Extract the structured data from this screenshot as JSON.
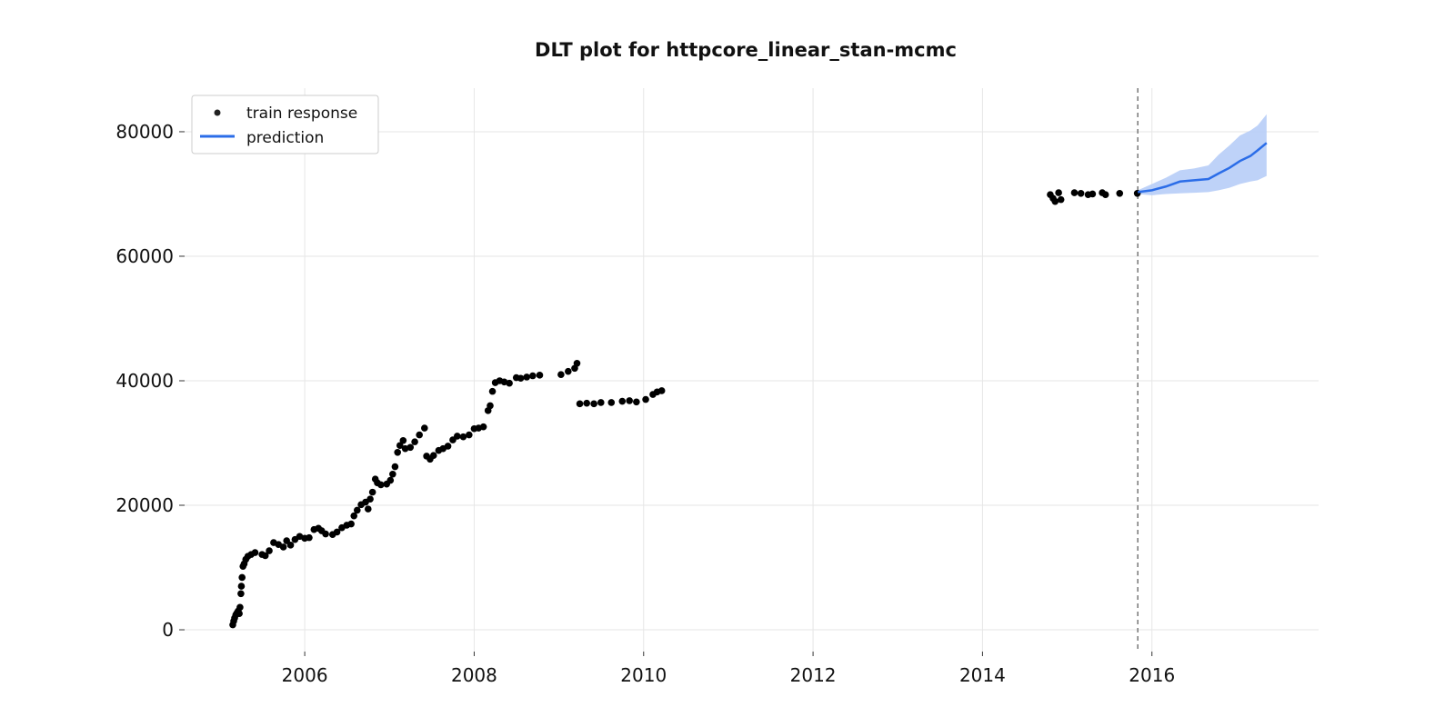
{
  "chart_data": {
    "type": "scatter",
    "title": "DLT plot for httpcore_linear_stan-mcmc",
    "xlabel": "",
    "ylabel": "",
    "x_ticks": [
      "2006",
      "2008",
      "2010",
      "2012",
      "2014",
      "2016"
    ],
    "y_ticks": [
      "0",
      "20000",
      "40000",
      "60000",
      "80000"
    ],
    "xlim": [
      "2004-08-01",
      "2017-12-20"
    ],
    "ylim": [
      -3500,
      87000
    ],
    "grid": true,
    "legend_position": "top-left",
    "legend": [
      "train response",
      "prediction"
    ],
    "colors": {
      "train": "#000000",
      "prediction": "#2b6de8",
      "band": "#b7cdf7",
      "cutoff": "#777777"
    },
    "cutoff_date": "2015-11-01",
    "series": [
      {
        "name": "train response",
        "type": "scatter",
        "points": [
          [
            "2005-02-25",
            800
          ],
          [
            "2005-03-01",
            1400
          ],
          [
            "2005-03-05",
            1900
          ],
          [
            "2005-03-10",
            2400
          ],
          [
            "2005-03-15",
            2700
          ],
          [
            "2005-03-20",
            3000
          ],
          [
            "2005-03-25",
            2600
          ],
          [
            "2005-03-28",
            3600
          ],
          [
            "2005-04-01",
            5800
          ],
          [
            "2005-04-03",
            7000
          ],
          [
            "2005-04-06",
            8400
          ],
          [
            "2005-04-10",
            10200
          ],
          [
            "2005-04-15",
            10600
          ],
          [
            "2005-04-22",
            11300
          ],
          [
            "2005-05-01",
            11800
          ],
          [
            "2005-05-15",
            12100
          ],
          [
            "2005-06-01",
            12400
          ],
          [
            "2005-07-01",
            12100
          ],
          [
            "2005-07-15",
            11900
          ],
          [
            "2005-08-01",
            12700
          ],
          [
            "2005-08-20",
            14000
          ],
          [
            "2005-09-10",
            13700
          ],
          [
            "2005-10-01",
            13300
          ],
          [
            "2005-10-15",
            14300
          ],
          [
            "2005-11-01",
            13600
          ],
          [
            "2005-11-20",
            14500
          ],
          [
            "2005-12-10",
            15000
          ],
          [
            "2006-01-01",
            14700
          ],
          [
            "2006-01-20",
            14800
          ],
          [
            "2006-02-10",
            16100
          ],
          [
            "2006-03-01",
            16300
          ],
          [
            "2006-03-15",
            15900
          ],
          [
            "2006-04-01",
            15400
          ],
          [
            "2006-05-01",
            15300
          ],
          [
            "2006-05-20",
            15700
          ],
          [
            "2006-06-10",
            16400
          ],
          [
            "2006-07-01",
            16800
          ],
          [
            "2006-07-20",
            17000
          ],
          [
            "2006-08-01",
            18300
          ],
          [
            "2006-08-15",
            19200
          ],
          [
            "2006-09-01",
            20100
          ],
          [
            "2006-09-20",
            20500
          ],
          [
            "2006-10-01",
            19400
          ],
          [
            "2006-10-10",
            21000
          ],
          [
            "2006-10-20",
            22100
          ],
          [
            "2006-11-01",
            24200
          ],
          [
            "2006-11-10",
            23600
          ],
          [
            "2006-11-25",
            23300
          ],
          [
            "2006-12-20",
            23400
          ],
          [
            "2007-01-05",
            24000
          ],
          [
            "2007-01-15",
            25000
          ],
          [
            "2007-01-25",
            26200
          ],
          [
            "2007-02-05",
            28500
          ],
          [
            "2007-02-15",
            29600
          ],
          [
            "2007-03-01",
            30400
          ],
          [
            "2007-03-10",
            29100
          ],
          [
            "2007-04-01",
            29300
          ],
          [
            "2007-04-20",
            30200
          ],
          [
            "2007-05-10",
            31300
          ],
          [
            "2007-06-01",
            32400
          ],
          [
            "2007-06-10",
            27900
          ],
          [
            "2007-06-25",
            27400
          ],
          [
            "2007-07-10",
            28000
          ],
          [
            "2007-08-01",
            28800
          ],
          [
            "2007-08-20",
            29100
          ],
          [
            "2007-09-10",
            29500
          ],
          [
            "2007-10-01",
            30500
          ],
          [
            "2007-10-20",
            31100
          ],
          [
            "2007-11-15",
            31000
          ],
          [
            "2007-12-10",
            31300
          ],
          [
            "2008-01-01",
            32300
          ],
          [
            "2008-01-20",
            32400
          ],
          [
            "2008-02-10",
            32600
          ],
          [
            "2008-03-01",
            35200
          ],
          [
            "2008-03-10",
            36000
          ],
          [
            "2008-03-20",
            38300
          ],
          [
            "2008-04-01",
            39700
          ],
          [
            "2008-04-20",
            40000
          ],
          [
            "2008-05-10",
            39800
          ],
          [
            "2008-06-01",
            39600
          ],
          [
            "2008-07-01",
            40500
          ],
          [
            "2008-07-20",
            40400
          ],
          [
            "2008-08-15",
            40600
          ],
          [
            "2008-09-10",
            40800
          ],
          [
            "2008-10-10",
            40900
          ],
          [
            "2009-01-10",
            41000
          ],
          [
            "2009-02-10",
            41500
          ],
          [
            "2009-03-10",
            42000
          ],
          [
            "2009-03-20",
            42800
          ],
          [
            "2009-04-01",
            36300
          ],
          [
            "2009-05-01",
            36400
          ],
          [
            "2009-06-01",
            36300
          ],
          [
            "2009-07-01",
            36500
          ],
          [
            "2009-08-15",
            36500
          ],
          [
            "2009-10-01",
            36700
          ],
          [
            "2009-11-01",
            36800
          ],
          [
            "2009-12-01",
            36600
          ],
          [
            "2010-01-10",
            37000
          ],
          [
            "2010-02-10",
            37800
          ],
          [
            "2010-02-28",
            38200
          ],
          [
            "2010-03-20",
            38400
          ],
          [
            "2014-10-20",
            69900
          ],
          [
            "2014-11-01",
            69300
          ],
          [
            "2014-11-10",
            68800
          ],
          [
            "2014-11-25",
            70200
          ],
          [
            "2014-12-05",
            69100
          ],
          [
            "2015-02-01",
            70200
          ],
          [
            "2015-03-01",
            70100
          ],
          [
            "2015-04-01",
            69900
          ],
          [
            "2015-04-20",
            70000
          ],
          [
            "2015-06-01",
            70200
          ],
          [
            "2015-06-15",
            69900
          ],
          [
            "2015-08-15",
            70100
          ],
          [
            "2015-10-30",
            70100
          ]
        ]
      },
      {
        "name": "prediction",
        "type": "line",
        "points": [
          [
            "2015-11-01",
            70300
          ],
          [
            "2016-01-01",
            70600
          ],
          [
            "2016-03-01",
            71200
          ],
          [
            "2016-05-01",
            72000
          ],
          [
            "2016-07-01",
            72200
          ],
          [
            "2016-09-01",
            72400
          ],
          [
            "2016-10-15",
            73300
          ],
          [
            "2016-12-01",
            74200
          ],
          [
            "2017-01-15",
            75300
          ],
          [
            "2017-03-01",
            76100
          ],
          [
            "2017-04-01",
            77000
          ],
          [
            "2017-05-10",
            78200
          ]
        ],
        "lower": [
          [
            "2015-11-01",
            70000
          ],
          [
            "2016-01-01",
            69800
          ],
          [
            "2016-03-01",
            70000
          ],
          [
            "2016-05-01",
            70100
          ],
          [
            "2016-07-01",
            70200
          ],
          [
            "2016-09-01",
            70300
          ],
          [
            "2016-10-15",
            70600
          ],
          [
            "2016-12-01",
            71000
          ],
          [
            "2017-01-15",
            71600
          ],
          [
            "2017-03-01",
            72000
          ],
          [
            "2017-04-01",
            72200
          ],
          [
            "2017-05-10",
            72900
          ]
        ],
        "upper": [
          [
            "2015-11-01",
            70600
          ],
          [
            "2016-01-01",
            71600
          ],
          [
            "2016-03-01",
            72600
          ],
          [
            "2016-05-01",
            73800
          ],
          [
            "2016-07-01",
            74100
          ],
          [
            "2016-09-01",
            74600
          ],
          [
            "2016-10-15",
            76300
          ],
          [
            "2016-12-01",
            77800
          ],
          [
            "2017-01-15",
            79400
          ],
          [
            "2017-03-01",
            80200
          ],
          [
            "2017-04-01",
            81000
          ],
          [
            "2017-05-10",
            82800
          ]
        ]
      }
    ]
  }
}
